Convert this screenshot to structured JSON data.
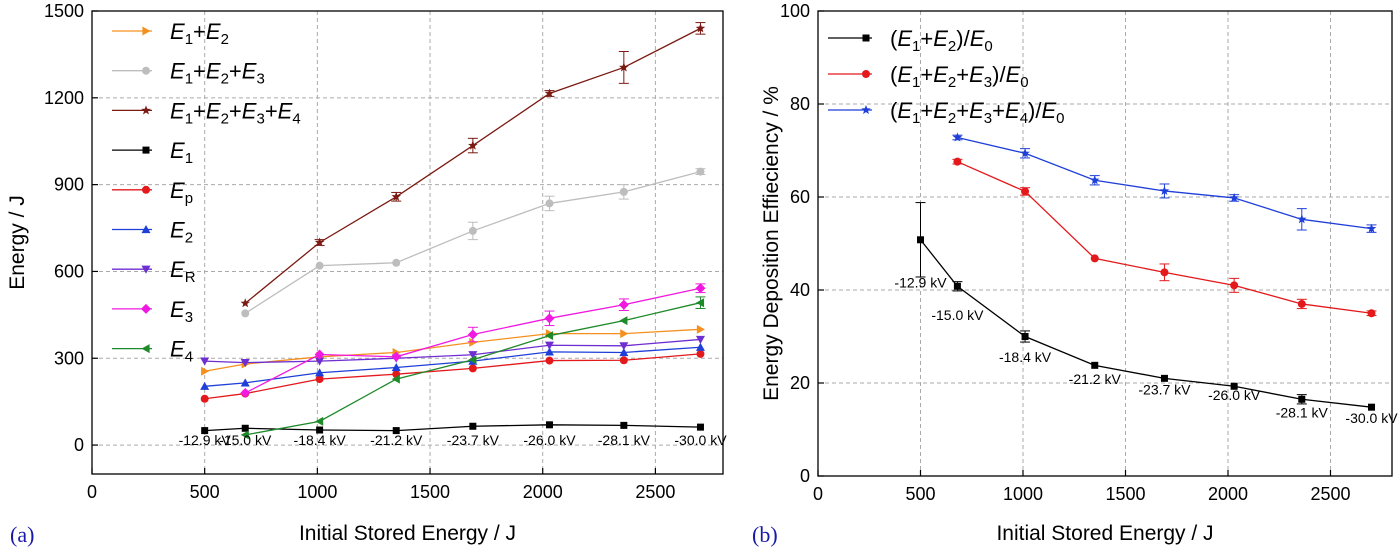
{
  "figure_labels": [
    "(a)",
    "(b)"
  ],
  "chart_data": [
    {
      "type": "line",
      "panel": "(a)",
      "xlabel": "Initial Stored Energy / J",
      "ylabel": "Energy / J",
      "xlim": [
        0,
        2800
      ],
      "ylim": [
        -100,
        1500
      ],
      "xticks": [
        0,
        500,
        1000,
        1500,
        2000,
        2500
      ],
      "yticks": [
        0,
        300,
        600,
        900,
        1200,
        1500
      ],
      "grid": true,
      "legend_position": "top-left",
      "annotations": [
        {
          "text": "-12.9 kV",
          "x": 500
        },
        {
          "text": "-15.0 kV",
          "x": 680
        },
        {
          "text": "-18.4 kV",
          "x": 1010
        },
        {
          "text": "-21.2 kV",
          "x": 1350
        },
        {
          "text": "-23.7 kV",
          "x": 1690
        },
        {
          "text": "-26.0 kV",
          "x": 2030
        },
        {
          "text": "-28.1 kV",
          "x": 2360
        },
        {
          "text": "-30.0 kV",
          "x": 2700
        }
      ],
      "series": [
        {
          "name": "E1+E2",
          "legend": [
            "E",
            "1",
            "+E",
            "2"
          ],
          "color": "#f5901e",
          "marker": "tri-right",
          "x": [
            500,
            680,
            1010,
            1350,
            1690,
            2030,
            2360,
            2700
          ],
          "y": [
            255,
            280,
            305,
            320,
            355,
            385,
            385,
            400
          ],
          "err": [
            0,
            0,
            0,
            0,
            0,
            0,
            0,
            0
          ]
        },
        {
          "name": "E1+E2+E3",
          "legend": [
            "E",
            "1",
            "+E",
            "2",
            "+E",
            "3"
          ],
          "color": "#bdbdbd",
          "marker": "circle",
          "x": [
            680,
            1010,
            1350,
            1690,
            2030,
            2360,
            2700
          ],
          "y": [
            455,
            620,
            630,
            740,
            835,
            875,
            945
          ],
          "err": [
            0,
            0,
            0,
            30,
            25,
            25,
            10
          ]
        },
        {
          "name": "E1+E2+E3+E4",
          "legend": [
            "E",
            "1",
            "+E",
            "2",
            "+E",
            "3",
            "+E",
            "4"
          ],
          "color": "#7b1a12",
          "marker": "star",
          "x": [
            680,
            1010,
            1350,
            1690,
            2030,
            2360,
            2700
          ],
          "y": [
            490,
            700,
            858,
            1035,
            1215,
            1305,
            1440
          ],
          "err": [
            0,
            10,
            15,
            25,
            10,
            55,
            20
          ]
        },
        {
          "name": "E1",
          "legend": [
            "E",
            "1"
          ],
          "color": "#000000",
          "marker": "square",
          "x": [
            500,
            680,
            1010,
            1350,
            1690,
            2030,
            2360,
            2700
          ],
          "y": [
            50,
            58,
            52,
            50,
            65,
            70,
            68,
            62
          ],
          "err": [
            0,
            0,
            0,
            0,
            0,
            0,
            0,
            0
          ]
        },
        {
          "name": "Ep",
          "legend": [
            "E",
            "p"
          ],
          "color": "#e3191c",
          "marker": "circle",
          "x": [
            500,
            680,
            1010,
            1350,
            1690,
            2030,
            2360,
            2700
          ],
          "y": [
            160,
            178,
            228,
            245,
            265,
            292,
            293,
            315
          ],
          "err": [
            0,
            0,
            0,
            0,
            0,
            0,
            0,
            0
          ]
        },
        {
          "name": "E2",
          "legend": [
            "E",
            "2"
          ],
          "color": "#1f3fd9",
          "marker": "tri-up",
          "x": [
            500,
            680,
            1010,
            1350,
            1690,
            2030,
            2360,
            2700
          ],
          "y": [
            203,
            215,
            250,
            268,
            290,
            322,
            320,
            338
          ],
          "err": [
            0,
            0,
            0,
            0,
            0,
            0,
            0,
            0
          ]
        },
        {
          "name": "ER",
          "legend": [
            "E",
            "R"
          ],
          "color": "#6e2ed1",
          "marker": "tri-down",
          "x": [
            500,
            680,
            1010,
            1350,
            1690,
            2030,
            2360,
            2700
          ],
          "y": [
            290,
            285,
            290,
            300,
            312,
            345,
            343,
            365
          ],
          "err": [
            0,
            0,
            0,
            0,
            0,
            0,
            0,
            0
          ]
        },
        {
          "name": "E3",
          "legend": [
            "E",
            "3"
          ],
          "color": "#f019e0",
          "marker": "diamond",
          "x": [
            680,
            1010,
            1350,
            1690,
            2030,
            2360,
            2700
          ],
          "y": [
            180,
            313,
            305,
            382,
            438,
            485,
            542
          ],
          "err": [
            0,
            0,
            0,
            25,
            25,
            20,
            15
          ]
        },
        {
          "name": "E4",
          "legend": [
            "E",
            "4"
          ],
          "color": "#1e8a2a",
          "marker": "tri-left",
          "x": [
            680,
            1010,
            1350,
            1690,
            2030,
            2360,
            2700
          ],
          "y": [
            35,
            82,
            228,
            295,
            378,
            430,
            492
          ],
          "err": [
            0,
            0,
            0,
            0,
            0,
            0,
            20
          ]
        }
      ]
    },
    {
      "type": "line",
      "panel": "(b)",
      "xlabel": "Initial Stored Energy / J",
      "ylabel": "Energy Deposition Effieciency / %",
      "xlim": [
        0,
        2800
      ],
      "ylim": [
        0,
        100
      ],
      "xticks": [
        0,
        500,
        1000,
        1500,
        2000,
        2500
      ],
      "yticks": [
        0,
        20,
        40,
        60,
        80,
        100
      ],
      "grid": true,
      "legend_position": "top-left",
      "annotations": [
        {
          "text": "-12.9 kV",
          "x": 500,
          "y": 40.5
        },
        {
          "text": "-15.0 kV",
          "x": 680,
          "y": 33.5
        },
        {
          "text": "-18.4 kV",
          "x": 1010,
          "y": 24.5
        },
        {
          "text": "-21.2 kV",
          "x": 1350,
          "y": 19.8
        },
        {
          "text": "-23.7 kV",
          "x": 1690,
          "y": 17.5
        },
        {
          "text": "-26.0 kV",
          "x": 2030,
          "y": 16.3
        },
        {
          "text": "-28.1 kV",
          "x": 2360,
          "y": 12.6
        },
        {
          "text": "-30.0 kV",
          "x": 2700,
          "y": 11.4
        }
      ],
      "series": [
        {
          "name": "(E1+E2)/E0",
          "legend": [
            "(E",
            "1",
            "+E",
            "2",
            ")/E",
            "0"
          ],
          "color": "#000000",
          "marker": "square",
          "x": [
            500,
            680,
            1010,
            1350,
            1690,
            2030,
            2360,
            2700
          ],
          "y": [
            50.8,
            40.8,
            30.0,
            23.8,
            21.0,
            19.3,
            16.5,
            14.8
          ],
          "err": [
            8.0,
            1.0,
            1.2,
            0,
            0,
            0,
            1.0,
            0
          ]
        },
        {
          "name": "(E1+E2+E3)/E0",
          "legend": [
            "(E",
            "1",
            "+E",
            "2",
            "+E",
            "3",
            ")/E",
            "0"
          ],
          "color": "#e3191c",
          "marker": "circle",
          "x": [
            680,
            1010,
            1350,
            1690,
            2030,
            2360,
            2700
          ],
          "y": [
            67.6,
            61.2,
            46.8,
            43.8,
            41.0,
            37.0,
            35.0
          ],
          "err": [
            0.5,
            0.8,
            0,
            1.8,
            1.5,
            1.0,
            0.5
          ]
        },
        {
          "name": "(E1+E2+E3+E4)/E0",
          "legend": [
            "(E",
            "1",
            "+E",
            "2",
            "+E",
            "3",
            "+E",
            "4",
            ")/E",
            "0"
          ],
          "color": "#1f3fd9",
          "marker": "star",
          "x": [
            680,
            1010,
            1350,
            1690,
            2030,
            2360,
            2700
          ],
          "y": [
            72.8,
            69.4,
            63.6,
            61.3,
            59.8,
            55.2,
            53.2
          ],
          "err": [
            0.5,
            1.0,
            1.0,
            1.5,
            0.7,
            2.3,
            0.8
          ]
        }
      ]
    }
  ]
}
